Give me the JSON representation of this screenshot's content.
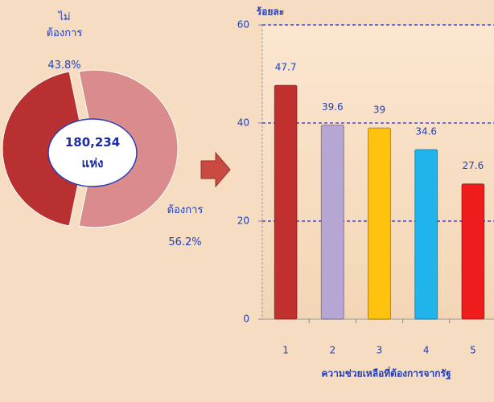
{
  "chart_data": [
    {
      "type": "pie",
      "categories": [
        "ไม่\nต้องการ",
        "ต้องการ"
      ],
      "values": [
        43.8,
        56.2
      ],
      "value_labels": [
        "43.8%",
        "56.2%"
      ],
      "colors": [
        "#b8302f",
        "#d98c8b"
      ],
      "center_text": "180,234\nแห่ง"
    },
    {
      "type": "bar",
      "y_label": "ร้อยละ",
      "x_label": "ความช่วยเหลือที่ต้องการจากรัฐ",
      "categories": [
        "1",
        "2",
        "3",
        "4",
        "5"
      ],
      "values": [
        47.7,
        39.6,
        39.0,
        34.6,
        27.6
      ],
      "colors": [
        "#c0302e",
        "#b6a6d4",
        "#ffc20e",
        "#1fb4ec",
        "#ee1c1c"
      ],
      "ylim": [
        0,
        60
      ],
      "yticks": [
        0,
        20,
        40,
        60
      ],
      "grid": true
    }
  ]
}
